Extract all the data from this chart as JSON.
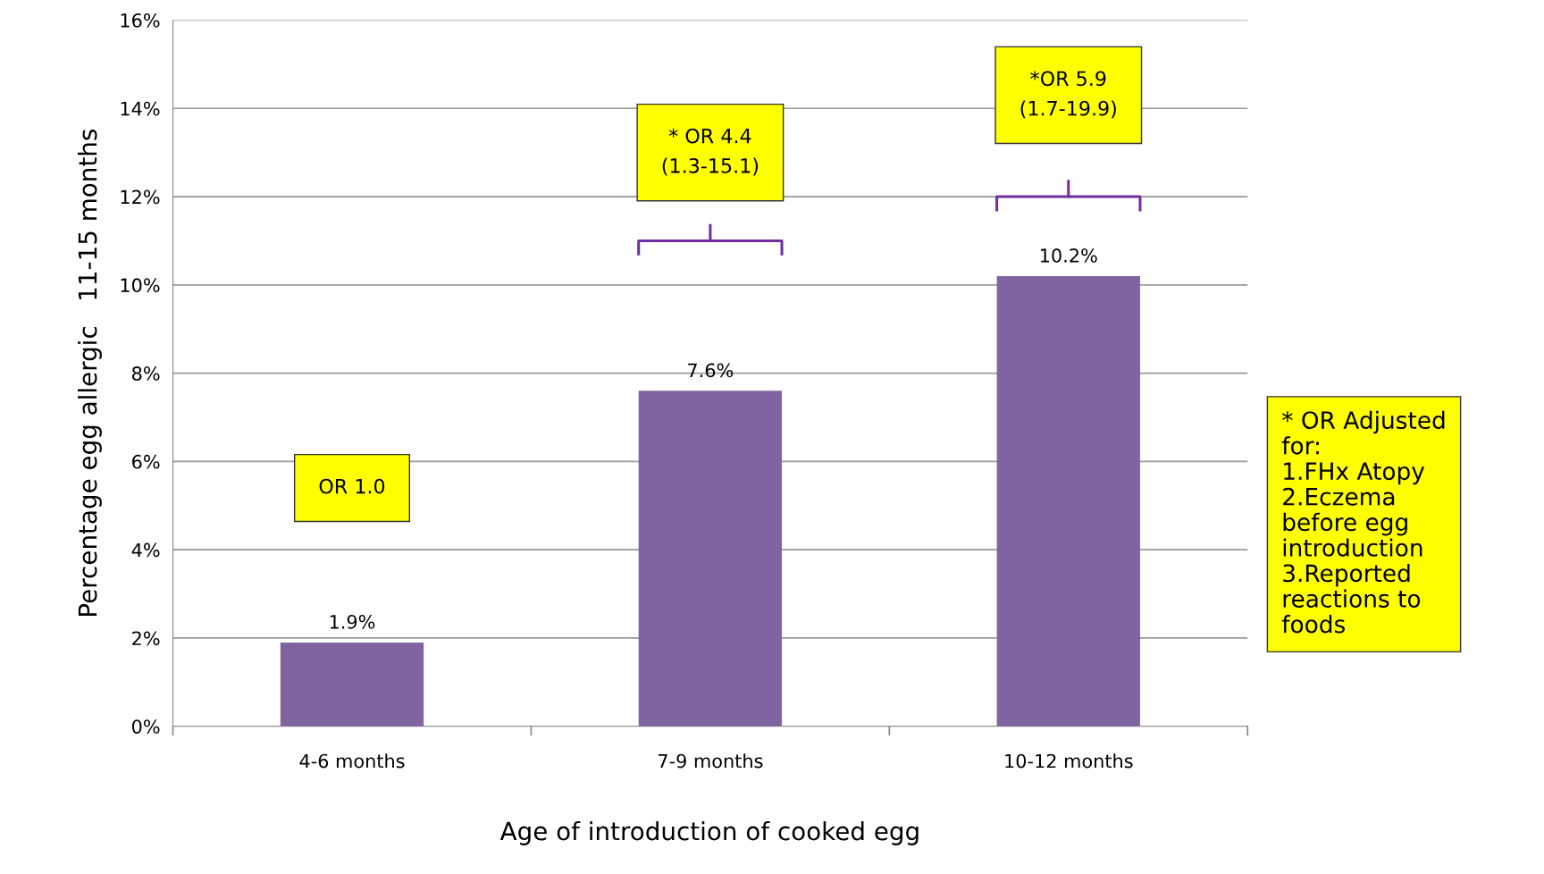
{
  "chart_data": {
    "type": "bar",
    "xlabel": "Age of introduction of cooked egg",
    "ylabel": "Percentage egg allergic   11-15 months",
    "categories": [
      "4-6 months",
      "7-9 months",
      "10-12 months"
    ],
    "values": [
      1.9,
      7.6,
      10.2
    ],
    "value_labels": [
      "1.9%",
      "7.6%",
      "10.2%"
    ],
    "color": "#8064a2",
    "ylim": [
      0,
      16
    ],
    "yticks": [
      {
        "value": 0,
        "label": "0%"
      },
      {
        "value": 2,
        "label": "2%"
      },
      {
        "value": 4,
        "label": "4%"
      },
      {
        "value": 6,
        "label": "6%"
      },
      {
        "value": 8,
        "label": "8%"
      },
      {
        "value": 10,
        "label": "10%"
      },
      {
        "value": 12,
        "label": "12%"
      },
      {
        "value": 14,
        "label": "14%"
      },
      {
        "value": 16,
        "label": "16%"
      }
    ],
    "grid": "y",
    "annotations": [
      "OR 1.0",
      "* OR 4.4\n(1.3-15.1)",
      "*OR 5.9\n(1.7-19.9)",
      "* OR Adjusted\nfor:\n1.FHx Atopy\n2.Eczema\nbefore egg\nintroduction\n3.Reported\nreactions to\nfoods"
    ]
  }
}
